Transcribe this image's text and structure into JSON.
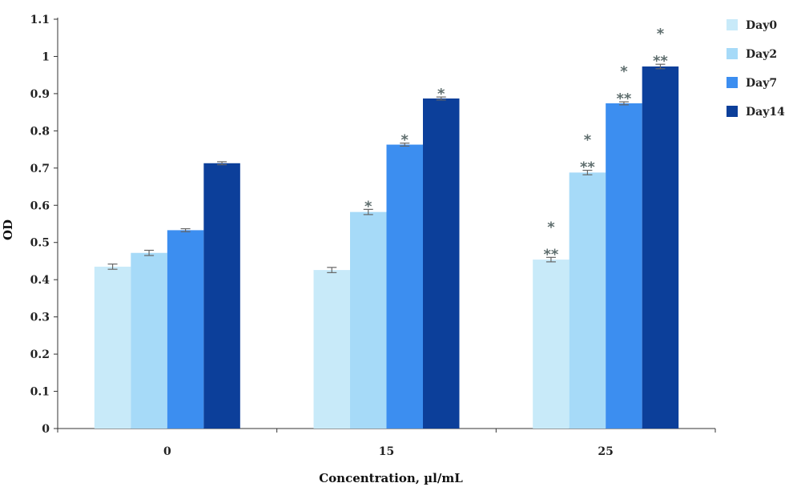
{
  "chart_data": {
    "type": "bar",
    "title": "",
    "xlabel": "Concentration, µl/mL",
    "ylabel": "OD",
    "ylim": [
      0,
      1.1
    ],
    "yticks": [
      "0",
      "0.1",
      "0.2",
      "0.3",
      "0.4",
      "0.5",
      "0.6",
      "0.7",
      "0.8",
      "0.9",
      "1",
      "1.1"
    ],
    "categories": [
      "0",
      "15",
      "25"
    ],
    "series": [
      {
        "name": "Day0",
        "color": "#c8eaf9",
        "values": [
          0.435,
          0.426,
          0.454
        ],
        "errors": [
          0.007,
          0.007,
          0.006
        ]
      },
      {
        "name": "Day2",
        "color": "#a6daf8",
        "values": [
          0.472,
          0.582,
          0.688
        ],
        "errors": [
          0.007,
          0.007,
          0.006
        ]
      },
      {
        "name": "Day7",
        "color": "#3c8ef0",
        "values": [
          0.533,
          0.763,
          0.874
        ],
        "errors": [
          0.004,
          0.004,
          0.004
        ]
      },
      {
        "name": "Day14",
        "color": "#0c3f9a",
        "values": [
          0.713,
          0.887,
          0.973
        ],
        "errors": [
          0.004,
          0.004,
          0.006
        ]
      }
    ],
    "annotations": [
      {
        "category": "15",
        "series": "Day2",
        "lines": [
          "*"
        ]
      },
      {
        "category": "15",
        "series": "Day7",
        "lines": [
          "*"
        ]
      },
      {
        "category": "15",
        "series": "Day14",
        "lines": [
          "*"
        ]
      },
      {
        "category": "25",
        "series": "Day0",
        "lines": [
          "*",
          "**"
        ]
      },
      {
        "category": "25",
        "series": "Day2",
        "lines": [
          "*",
          "**"
        ]
      },
      {
        "category": "25",
        "series": "Day7",
        "lines": [
          "*",
          "**"
        ]
      },
      {
        "category": "25",
        "series": "Day14",
        "lines": [
          "*",
          "**"
        ]
      }
    ],
    "legend_position": "right",
    "grid": false
  }
}
